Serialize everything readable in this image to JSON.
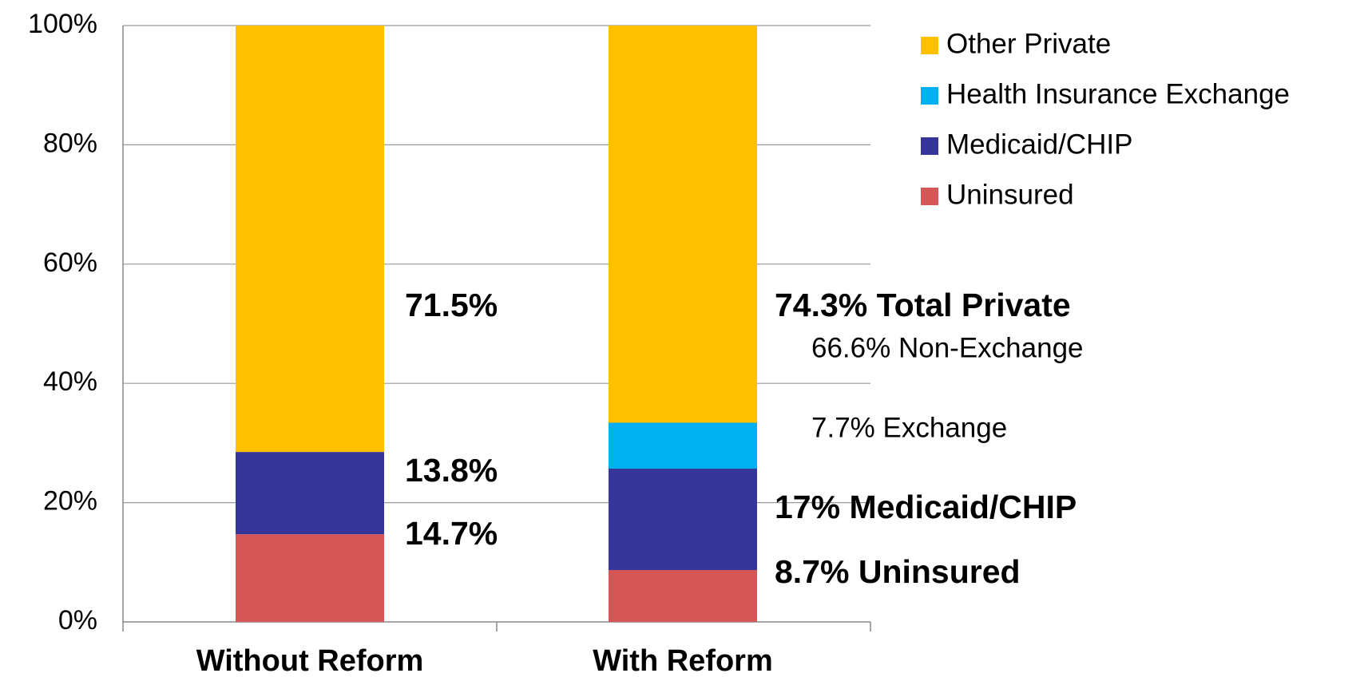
{
  "chart_data": {
    "type": "stacked_bar",
    "categories": [
      "Without Reform",
      "With Reform"
    ],
    "series": [
      {
        "name": "Uninsured",
        "color": "#d55656",
        "values": [
          14.7,
          8.7
        ],
        "value_labels": [
          "14.7%",
          "8.7% Uninsured"
        ]
      },
      {
        "name": "Medicaid/CHIP",
        "color": "#35359a",
        "values": [
          13.8,
          17
        ],
        "value_labels": [
          "13.8%",
          "17% Medicaid/CHIP"
        ]
      },
      {
        "name": "Health Insurance Exchange",
        "color": "#00b0f0",
        "values": [
          0,
          7.7
        ],
        "value_labels": [
          null,
          "7.7% Exchange"
        ]
      },
      {
        "name": "Other Private",
        "color": "#ffc000",
        "values": [
          71.5,
          66.6
        ],
        "value_labels": [
          "71.5%",
          "66.6% Non-Exchange"
        ]
      }
    ],
    "annotations": [
      "74.3% Total Private"
    ],
    "ylim": [
      0,
      100
    ],
    "yticks": [
      {
        "value": 0,
        "label": "0%"
      },
      {
        "value": 20,
        "label": "20%"
      },
      {
        "value": 40,
        "label": "40%"
      },
      {
        "value": 60,
        "label": "60%"
      },
      {
        "value": 80,
        "label": "80%"
      },
      {
        "value": 100,
        "label": "100%"
      }
    ],
    "grid": true,
    "legend": "top-right"
  }
}
